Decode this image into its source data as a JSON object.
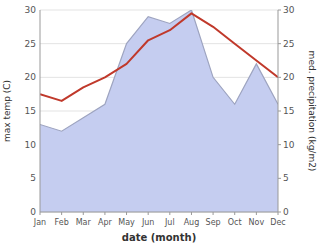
{
  "chart_data": {
    "type": "line",
    "xlabel": "date (month)",
    "ylabel": "max temp (C)",
    "y2label": "med. precipitation (kg/m2)",
    "categories": [
      "Jan",
      "Feb",
      "Mar",
      "Apr",
      "May",
      "Jun",
      "Jul",
      "Aug",
      "Sep",
      "Oct",
      "Nov",
      "Dec"
    ],
    "series": [
      {
        "type": "area",
        "color": "#c5cdf0",
        "values": [
          13,
          12,
          14,
          16,
          25,
          29,
          28,
          30,
          20,
          16,
          22,
          16
        ]
      },
      {
        "type": "line",
        "color": "#c0392b",
        "values": [
          17.5,
          16.5,
          18.5,
          20.0,
          22.0,
          25.5,
          27.0,
          29.5,
          27.5,
          25.0,
          22.5,
          20.0
        ]
      }
    ],
    "ylim": [
      0,
      30
    ],
    "yticks": [
      0,
      5,
      10,
      15,
      20,
      25,
      30
    ],
    "y2lim": [
      0,
      30
    ],
    "y2ticks": [
      0,
      5,
      10,
      15,
      20,
      25,
      30
    ],
    "grid": true
  }
}
